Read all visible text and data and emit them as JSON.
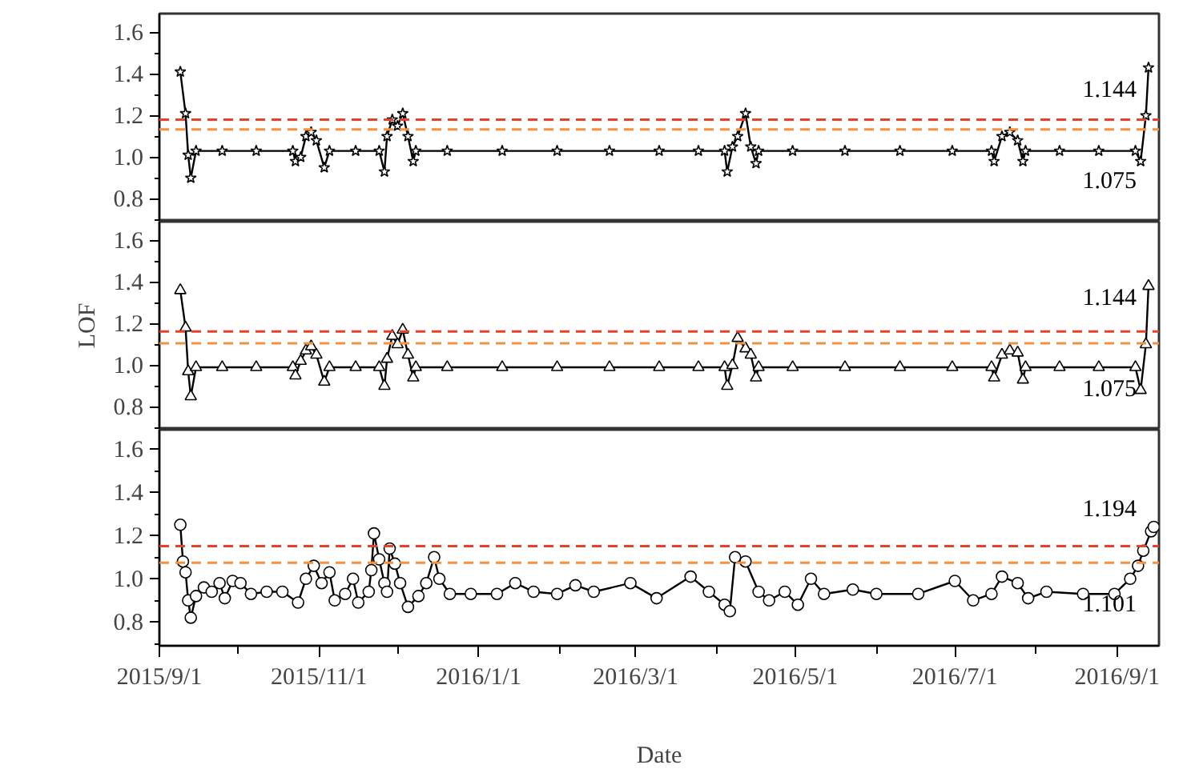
{
  "chart_data": [
    {
      "type": "line",
      "marker": "star",
      "tick_labels": "y",
      "xlim": [
        "2015-09-01",
        "2016-09-17"
      ],
      "ylim": [
        0.69,
        1.69
      ],
      "yticks": [
        {
          "value": 0.8,
          "label": "0.8"
        },
        {
          "value": 1,
          "label": "1.0"
        },
        {
          "value": 1.2,
          "label": "1.2"
        },
        {
          "value": 1.4,
          "label": "1.4"
        },
        {
          "value": 1.6,
          "label": "1.6"
        },
        {
          "value": 0.7,
          "label": null
        },
        {
          "value": 0.9,
          "label": null
        },
        {
          "value": 1.1,
          "label": null
        },
        {
          "value": 1.3,
          "label": null
        },
        {
          "value": 1.5,
          "label": null
        }
      ],
      "x": [
        "2015-09-09",
        "2015-09-11",
        "2015-09-12",
        "2015-09-13",
        "2015-09-15",
        "2015-09-25",
        "2015-10-08",
        "2015-10-22",
        "2015-10-23",
        "2015-10-25",
        "2015-10-27",
        "2015-10-29",
        "2015-10-31",
        "2015-11-03",
        "2015-11-05",
        "2015-11-15",
        "2015-11-24",
        "2015-11-26",
        "2015-11-27",
        "2015-11-29",
        "2015-12-01",
        "2015-12-03",
        "2015-12-05",
        "2015-12-07",
        "2015-12-08",
        "2015-12-20",
        "2016-01-10",
        "2016-01-31",
        "2016-02-20",
        "2016-03-10",
        "2016-03-25",
        "2016-04-04",
        "2016-04-05",
        "2016-04-07",
        "2016-04-09",
        "2016-04-12",
        "2016-04-14",
        "2016-04-16",
        "2016-04-17",
        "2016-04-30",
        "2016-05-20",
        "2016-06-10",
        "2016-06-30",
        "2016-07-15",
        "2016-07-16",
        "2016-07-19",
        "2016-07-22",
        "2016-07-25",
        "2016-07-27",
        "2016-07-28",
        "2016-08-10",
        "2016-08-25",
        "2016-09-08",
        "2016-09-10",
        "2016-09-12",
        "2016-09-13"
      ],
      "series": [
        {
          "color": "#000000",
          "values": [
            1.41,
            1.21,
            1.01,
            0.9,
            1.03,
            1.03,
            1.03,
            1.03,
            0.98,
            1.0,
            1.1,
            1.12,
            1.08,
            0.95,
            1.03,
            1.03,
            1.03,
            0.93,
            1.1,
            1.18,
            1.15,
            1.21,
            1.1,
            0.98,
            1.03,
            1.03,
            1.03,
            1.03,
            1.03,
            1.03,
            1.03,
            1.03,
            0.93,
            1.05,
            1.1,
            1.21,
            1.05,
            0.97,
            1.03,
            1.03,
            1.03,
            1.03,
            1.03,
            1.03,
            0.98,
            1.1,
            1.12,
            1.08,
            0.98,
            1.03,
            1.03,
            1.03,
            1.03,
            0.98,
            1.2,
            1.43
          ]
        }
      ],
      "ref_lines": [
        {
          "axis": "y",
          "value": 1.18,
          "color": "#e8402a",
          "line_style": "dashed"
        },
        {
          "axis": "y",
          "value": 1.133,
          "color": "#f5903f",
          "line_style": "dashed"
        }
      ],
      "annotations": [
        "1.144",
        "1.075"
      ]
    },
    {
      "type": "line",
      "marker": "triangle",
      "tick_labels": "y",
      "ylabel": "LOF",
      "xlim": [
        "2015-09-01",
        "2016-09-17"
      ],
      "ylim": [
        0.69,
        1.69
      ],
      "yticks": [
        {
          "value": 0.8,
          "label": "0.8"
        },
        {
          "value": 1,
          "label": "1.0"
        },
        {
          "value": 1.2,
          "label": "1.2"
        },
        {
          "value": 1.4,
          "label": "1.4"
        },
        {
          "value": 1.6,
          "label": "1.6"
        },
        {
          "value": 0.7,
          "label": null
        },
        {
          "value": 0.9,
          "label": null
        },
        {
          "value": 1.1,
          "label": null
        },
        {
          "value": 1.3,
          "label": null
        },
        {
          "value": 1.5,
          "label": null
        }
      ],
      "x": [
        "2015-09-09",
        "2015-09-11",
        "2015-09-12",
        "2015-09-13",
        "2015-09-15",
        "2015-09-25",
        "2015-10-08",
        "2015-10-22",
        "2015-10-23",
        "2015-10-25",
        "2015-10-27",
        "2015-10-29",
        "2015-10-31",
        "2015-11-03",
        "2015-11-05",
        "2015-11-15",
        "2015-11-24",
        "2015-11-26",
        "2015-11-27",
        "2015-11-29",
        "2015-12-01",
        "2015-12-03",
        "2015-12-05",
        "2015-12-07",
        "2015-12-08",
        "2015-12-20",
        "2016-01-10",
        "2016-01-31",
        "2016-02-20",
        "2016-03-10",
        "2016-03-25",
        "2016-04-04",
        "2016-04-05",
        "2016-04-07",
        "2016-04-09",
        "2016-04-12",
        "2016-04-14",
        "2016-04-16",
        "2016-04-17",
        "2016-04-30",
        "2016-05-20",
        "2016-06-10",
        "2016-06-30",
        "2016-07-15",
        "2016-07-16",
        "2016-07-19",
        "2016-07-22",
        "2016-07-25",
        "2016-07-27",
        "2016-07-28",
        "2016-08-10",
        "2016-08-25",
        "2016-09-08",
        "2016-09-10",
        "2016-09-12",
        "2016-09-13"
      ],
      "series": [
        {
          "color": "#000000",
          "values": [
            1.36,
            1.18,
            0.97,
            0.85,
            0.99,
            0.99,
            0.99,
            0.99,
            0.95,
            1.02,
            1.07,
            1.09,
            1.05,
            0.92,
            0.99,
            0.99,
            0.99,
            0.9,
            1.03,
            1.14,
            1.1,
            1.17,
            1.05,
            0.94,
            0.99,
            0.99,
            0.99,
            0.99,
            0.99,
            0.99,
            0.99,
            0.99,
            0.9,
            1.0,
            1.13,
            1.08,
            1.05,
            0.94,
            0.99,
            0.99,
            0.99,
            0.99,
            0.99,
            0.99,
            0.94,
            1.05,
            1.07,
            1.06,
            0.93,
            0.99,
            0.99,
            0.99,
            0.99,
            0.88,
            1.1,
            1.38
          ]
        }
      ],
      "ref_lines": [
        {
          "axis": "y",
          "value": 1.162,
          "color": "#e8402a",
          "line_style": "dashed"
        },
        {
          "axis": "y",
          "value": 1.105,
          "color": "#f5903f",
          "line_style": "dashed"
        }
      ],
      "annotations": [
        "1.144",
        "1.075"
      ]
    },
    {
      "type": "line",
      "marker": "circle",
      "xlabel": "Date",
      "xlim": [
        "2015-09-01",
        "2016-09-17"
      ],
      "ylim": [
        0.69,
        1.69
      ],
      "xticks": [
        {
          "value": "2015-09-01",
          "label": "2015/9/1"
        },
        {
          "value": "2015-11-01",
          "label": "2015/11/1"
        },
        {
          "value": "2016-01-01",
          "label": "2016/1/1"
        },
        {
          "value": "2016-03-01",
          "label": "2016/3/1"
        },
        {
          "value": "2016-05-01",
          "label": "2016/5/1"
        },
        {
          "value": "2016-07-01",
          "label": "2016/7/1"
        },
        {
          "value": "2016-09-01",
          "label": "2016/9/1"
        },
        {
          "value": "2015-10-01",
          "label": null
        },
        {
          "value": "2015-12-01",
          "label": null
        },
        {
          "value": "2016-02-01",
          "label": null
        },
        {
          "value": "2016-04-01",
          "label": null
        },
        {
          "value": "2016-06-01",
          "label": null
        },
        {
          "value": "2016-08-01",
          "label": null
        }
      ],
      "yticks": [
        {
          "value": 0.8,
          "label": "0.8"
        },
        {
          "value": 1,
          "label": "1.0"
        },
        {
          "value": 1.2,
          "label": "1.2"
        },
        {
          "value": 1.4,
          "label": "1.4"
        },
        {
          "value": 1.6,
          "label": "1.6"
        },
        {
          "value": 0.7,
          "label": null
        },
        {
          "value": 0.9,
          "label": null
        },
        {
          "value": 1.1,
          "label": null
        },
        {
          "value": 1.3,
          "label": null
        },
        {
          "value": 1.5,
          "label": null
        }
      ],
      "x": [
        "2015-09-09",
        "2015-09-10",
        "2015-09-11",
        "2015-09-12",
        "2015-09-13",
        "2015-09-15",
        "2015-09-18",
        "2015-09-21",
        "2015-09-24",
        "2015-09-26",
        "2015-09-29",
        "2015-10-02",
        "2015-10-06",
        "2015-10-12",
        "2015-10-18",
        "2015-10-24",
        "2015-10-27",
        "2015-10-30",
        "2015-11-02",
        "2015-11-05",
        "2015-11-07",
        "2015-11-11",
        "2015-11-14",
        "2015-11-16",
        "2015-11-20",
        "2015-11-21",
        "2015-11-22",
        "2015-11-24",
        "2015-11-26",
        "2015-11-27",
        "2015-11-28",
        "2015-11-30",
        "2015-12-02",
        "2015-12-05",
        "2015-12-09",
        "2015-12-12",
        "2015-12-15",
        "2015-12-17",
        "2015-12-21",
        "2015-12-29",
        "2016-01-08",
        "2016-01-15",
        "2016-01-22",
        "2016-01-31",
        "2016-02-07",
        "2016-02-14",
        "2016-02-28",
        "2016-03-09",
        "2016-03-22",
        "2016-03-29",
        "2016-04-04",
        "2016-04-06",
        "2016-04-08",
        "2016-04-12",
        "2016-04-17",
        "2016-04-21",
        "2016-04-27",
        "2016-05-02",
        "2016-05-07",
        "2016-05-12",
        "2016-05-23",
        "2016-06-01",
        "2016-06-17",
        "2016-07-01",
        "2016-07-08",
        "2016-07-15",
        "2016-07-19",
        "2016-07-25",
        "2016-07-29",
        "2016-08-05",
        "2016-08-19",
        "2016-08-31",
        "2016-09-06",
        "2016-09-09",
        "2016-09-11",
        "2016-09-14",
        "2016-09-15"
      ],
      "series": [
        {
          "color": "#000000",
          "values": [
            1.25,
            1.08,
            1.03,
            0.9,
            0.82,
            0.92,
            0.96,
            0.94,
            0.98,
            0.91,
            0.99,
            0.98,
            0.93,
            0.94,
            0.94,
            0.89,
            1.0,
            1.06,
            0.98,
            1.03,
            0.9,
            0.93,
            1.0,
            0.89,
            0.94,
            1.04,
            1.21,
            1.09,
            0.98,
            0.94,
            1.14,
            1.07,
            0.98,
            0.87,
            0.92,
            0.98,
            1.1,
            1.0,
            0.93,
            0.93,
            0.93,
            0.98,
            0.94,
            0.93,
            0.97,
            0.94,
            0.98,
            0.91,
            1.01,
            0.94,
            0.88,
            0.85,
            1.1,
            1.08,
            0.94,
            0.9,
            0.94,
            0.88,
            1.0,
            0.93,
            0.95,
            0.93,
            0.93,
            0.99,
            0.9,
            0.93,
            1.01,
            0.98,
            0.91,
            0.94,
            0.93,
            0.93,
            1.0,
            1.06,
            1.13,
            1.22,
            1.24
          ]
        }
      ],
      "ref_lines": [
        {
          "axis": "y",
          "value": 1.151,
          "color": "#e8402a",
          "line_style": "dashed"
        },
        {
          "axis": "y",
          "value": 1.074,
          "color": "#f5903f",
          "line_style": "dashed"
        }
      ],
      "annotations": [
        "1.194",
        "1.101"
      ]
    }
  ]
}
